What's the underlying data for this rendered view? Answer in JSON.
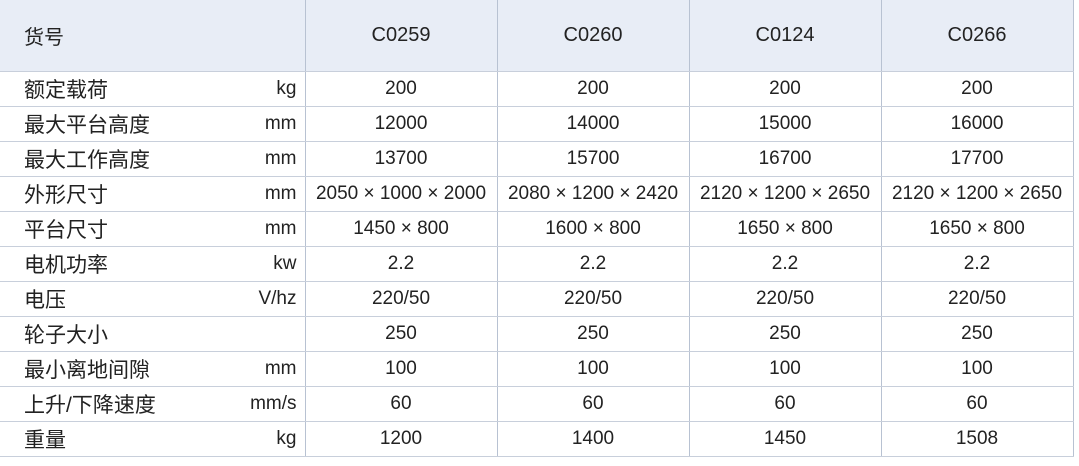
{
  "table": {
    "header": {
      "title": "货号",
      "models": [
        "C0259",
        "C0260",
        "C0124",
        "C0266"
      ]
    },
    "rows": [
      {
        "label": "额定载荷",
        "unit": "kg",
        "values": [
          "200",
          "200",
          "200",
          "200"
        ]
      },
      {
        "label": "最大平台高度",
        "unit": "mm",
        "values": [
          "12000",
          "14000",
          "15000",
          "16000"
        ]
      },
      {
        "label": "最大工作高度",
        "unit": "mm",
        "values": [
          "13700",
          "15700",
          "16700",
          "17700"
        ]
      },
      {
        "label": "外形尺寸",
        "unit": "mm",
        "values": [
          "2050 × 1000 × 2000",
          "2080 × 1200 × 2420",
          "2120 × 1200 × 2650",
          "2120 × 1200 × 2650"
        ]
      },
      {
        "label": "平台尺寸",
        "unit": "mm",
        "values": [
          "1450 × 800",
          "1600 × 800",
          "1650 × 800",
          "1650 × 800"
        ]
      },
      {
        "label": "电机功率",
        "unit": "kw",
        "values": [
          "2.2",
          "2.2",
          "2.2",
          "2.2"
        ]
      },
      {
        "label": "电压",
        "unit": "V/hz",
        "values": [
          "220/50",
          "220/50",
          "220/50",
          "220/50"
        ]
      },
      {
        "label": "轮子大小",
        "values": [
          "250",
          "250",
          "250",
          "250"
        ]
      },
      {
        "label": "最小离地间隙",
        "unit": "mm",
        "values": [
          "100",
          "100",
          "100",
          "100"
        ]
      },
      {
        "label": "上升/下降速度",
        "unit": "mm/s",
        "values": [
          "60",
          "60",
          "60",
          "60"
        ]
      },
      {
        "label": "重量",
        "unit": "kg",
        "values": [
          "1200",
          "1400",
          "1450",
          "1508"
        ]
      }
    ]
  }
}
